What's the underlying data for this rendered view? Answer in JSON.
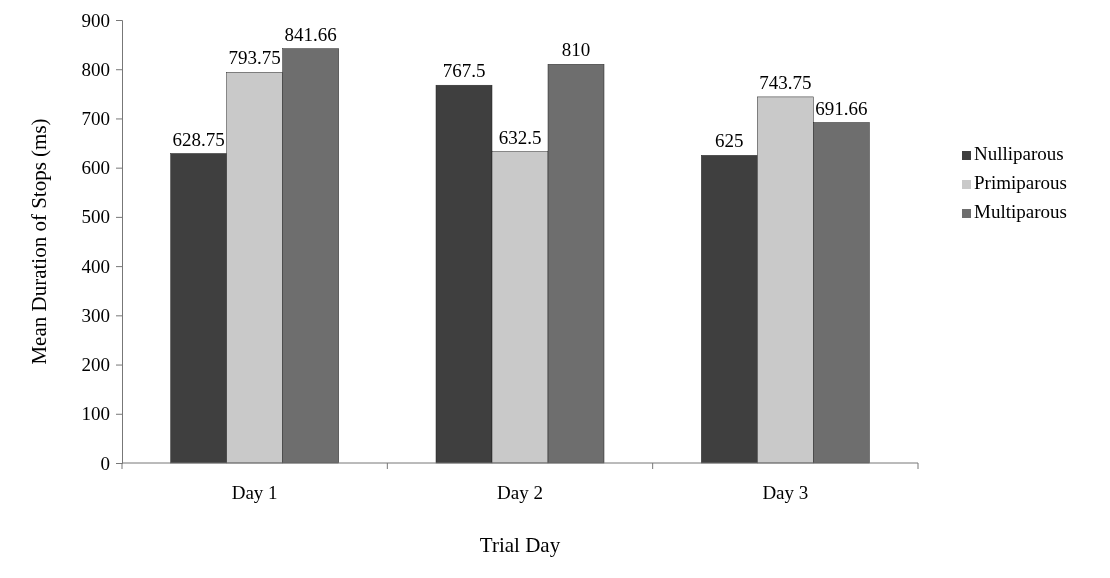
{
  "chart_data": {
    "type": "bar",
    "xlabel": "Trial Day",
    "ylabel": "Mean Duration of Stops (ms)",
    "categories": [
      "Day 1",
      "Day 2",
      "Day 3"
    ],
    "series": [
      {
        "name": "Nulliparous",
        "color": "#3f3f3f",
        "values": [
          628.75,
          767.5,
          625
        ]
      },
      {
        "name": "Primiparous",
        "color": "#c9c9c9",
        "values": [
          793.75,
          632.5,
          743.75
        ]
      },
      {
        "name": "Multiparous",
        "color": "#6e6e6e",
        "values": [
          841.66,
          810,
          691.66
        ]
      }
    ],
    "ylim": [
      0,
      900
    ],
    "yticks": [
      0,
      100,
      200,
      300,
      400,
      500,
      600,
      700,
      800,
      900
    ],
    "data_labels": true,
    "legend": "right",
    "grid": false
  }
}
